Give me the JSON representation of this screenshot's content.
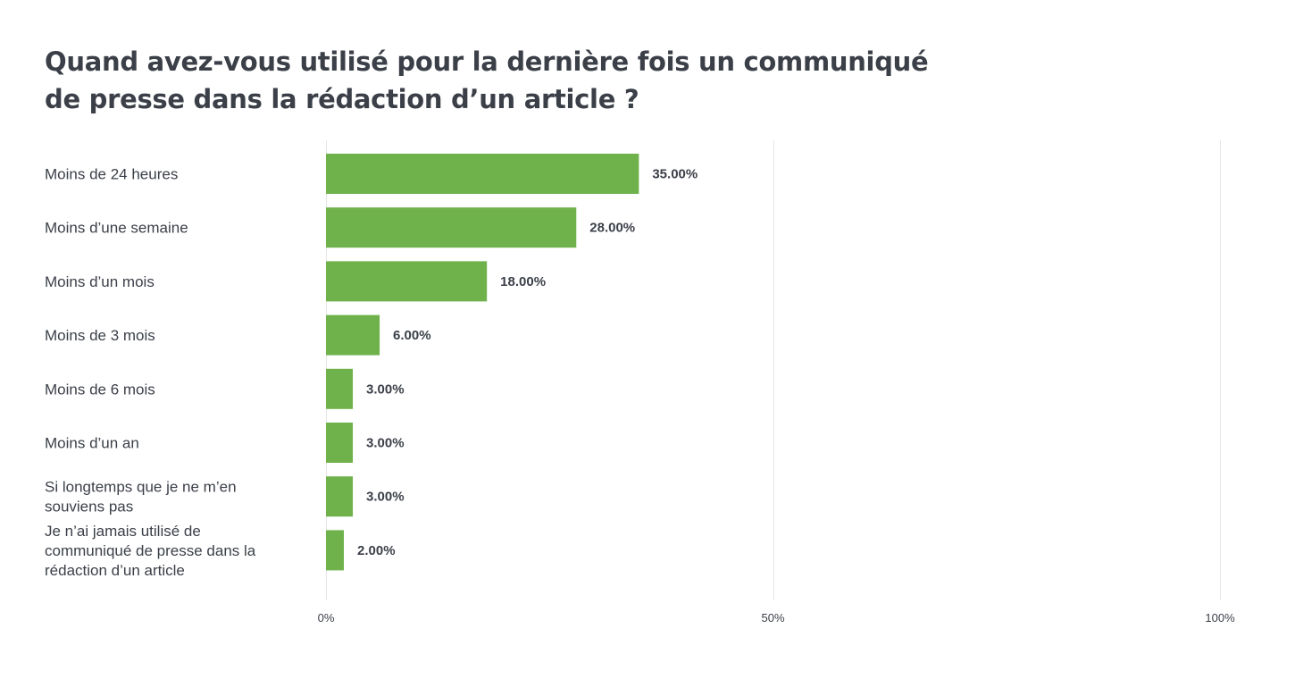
{
  "chart_data": {
    "type": "bar",
    "orientation": "horizontal",
    "title": "Quand avez-vous utilisé pour la dernière fois un communiqué de presse dans la rédaction d’un article ?",
    "categories": [
      "Moins de 24 heures",
      "Moins d’une semaine",
      "Moins d’un mois",
      "Moins de 3 mois",
      "Moins de 6 mois",
      "Moins d’un an",
      "Si longtemps que je ne m’en souviens pas",
      "Je n’ai jamais utilisé de communiqué de presse dans la rédaction d’un article"
    ],
    "category_lines": [
      [
        "Moins de 24 heures"
      ],
      [
        "Moins d’une semaine"
      ],
      [
        "Moins d’un mois"
      ],
      [
        "Moins de 3 mois"
      ],
      [
        "Moins de 6 mois"
      ],
      [
        "Moins d’un an"
      ],
      [
        "Si longtemps que je ne m’en",
        "souviens pas"
      ],
      [
        "Je n’ai jamais utilisé de",
        "communiqué de presse dans la",
        "rédaction d’un article"
      ]
    ],
    "values": [
      35,
      28,
      18,
      6,
      3,
      3,
      3,
      2
    ],
    "value_labels": [
      "35.00%",
      "28.00%",
      "18.00%",
      "6.00%",
      "3.00%",
      "3.00%",
      "3.00%",
      "2.00%"
    ],
    "xlim": [
      0,
      100
    ],
    "xticks": [
      0,
      50,
      100
    ],
    "xtick_labels": [
      "0%",
      "50%",
      "100%"
    ],
    "grid": true,
    "bar_color": "#6fb24b",
    "text_color": "#3b3f48",
    "grid_color": "#e6e6e6"
  }
}
